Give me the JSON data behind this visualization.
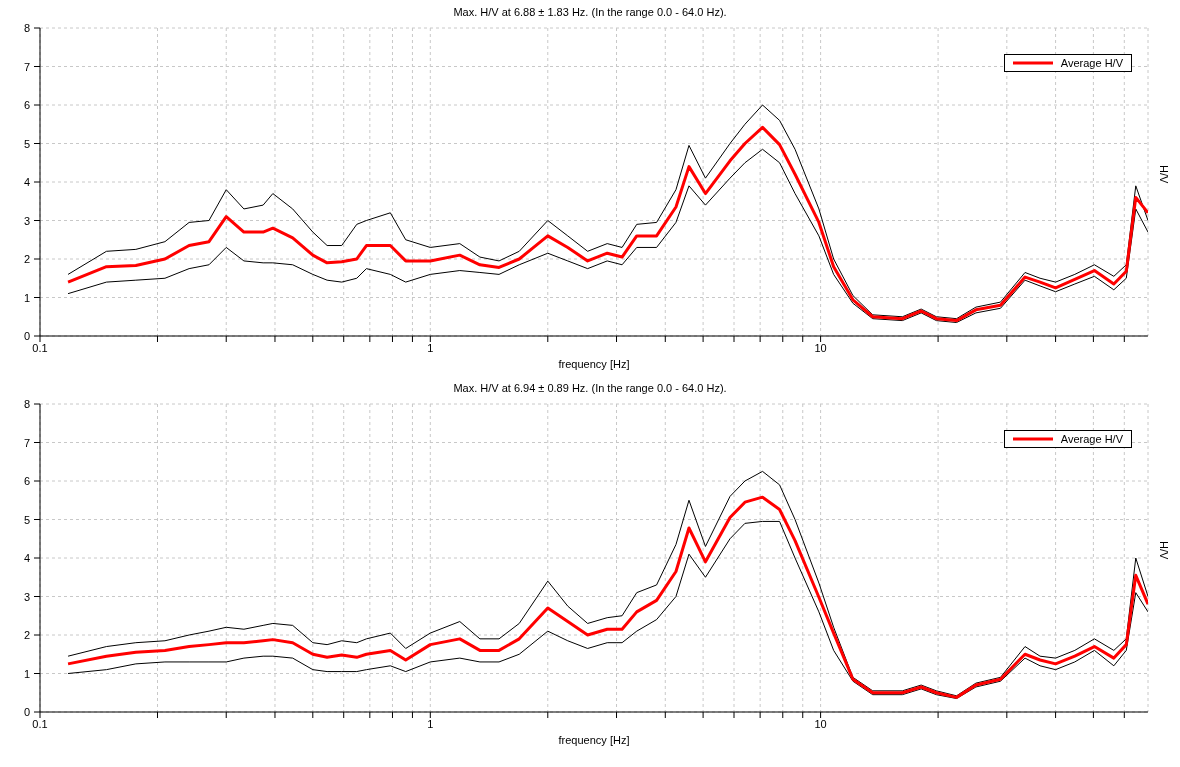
{
  "chart_data": [
    {
      "type": "line",
      "title": "Max. H/V at 6.88 ± 1.83 Hz. (In the range 0.0 - 64.0 Hz).",
      "xlabel": "frequency [Hz]",
      "ylabel": "H/V",
      "log": "x",
      "grid": true,
      "legend": "top right",
      "marker": "none",
      "line_style": "solid",
      "x": [
        0.118,
        0.148,
        0.176,
        0.209,
        0.241,
        0.271,
        0.3,
        0.333,
        0.373,
        0.395,
        0.444,
        0.5,
        0.544,
        0.593,
        0.648,
        0.686,
        0.79,
        0.865,
        1.0,
        1.19,
        1.34,
        1.5,
        1.69,
        2.0,
        2.25,
        2.53,
        2.84,
        3.1,
        3.38,
        3.8,
        4.26,
        4.6,
        5.07,
        5.86,
        6.4,
        7.1,
        7.85,
        8.6,
        9.9,
        10.8,
        12.1,
        13.6,
        16.2,
        18.1,
        19.8,
        22.3,
        25,
        28.9,
        33.4,
        36.5,
        40,
        44.8,
        50.3,
        56.4,
        60.7,
        64.2,
        69
      ],
      "xlim": [
        0.1,
        69
      ],
      "ylim": [
        0,
        8
      ],
      "yticks": [
        0,
        1,
        2,
        3,
        4,
        5,
        6,
        7,
        8
      ],
      "xticks": [
        0.1,
        {
          "value": 0.2,
          "label": null
        },
        {
          "value": 0.3,
          "label": null
        },
        {
          "value": 0.4,
          "label": null
        },
        {
          "value": 0.5,
          "label": null
        },
        {
          "value": 0.6,
          "label": null
        },
        {
          "value": 0.7,
          "label": null
        },
        {
          "value": 0.8,
          "label": null
        },
        {
          "value": 0.9,
          "label": null
        },
        1,
        {
          "value": 2,
          "label": null
        },
        {
          "value": 3,
          "label": null
        },
        {
          "value": 4,
          "label": null
        },
        {
          "value": 5,
          "label": null
        },
        {
          "value": 6,
          "label": null
        },
        {
          "value": 7,
          "label": null
        },
        {
          "value": 8,
          "label": null
        },
        {
          "value": 9,
          "label": null
        },
        10,
        {
          "value": 20,
          "label": null
        },
        {
          "value": 30,
          "label": null
        },
        {
          "value": 40,
          "label": null
        },
        {
          "value": 50,
          "label": null
        },
        {
          "value": 60,
          "label": null
        }
      ],
      "series": [
        {
          "color": "#000000",
          "values": [
            1.6,
            2.2,
            2.25,
            2.45,
            2.95,
            3.0,
            3.8,
            3.3,
            3.4,
            3.7,
            3.3,
            2.7,
            2.35,
            2.35,
            2.9,
            3.0,
            3.2,
            2.5,
            2.3,
            2.4,
            2.05,
            1.95,
            2.2,
            3.0,
            2.6,
            2.2,
            2.4,
            2.3,
            2.9,
            2.95,
            3.8,
            4.95,
            4.1,
            5.0,
            5.5,
            6.0,
            5.6,
            4.85,
            3.3,
            2.0,
            1.05,
            0.55,
            0.5,
            0.7,
            0.5,
            0.45,
            0.75,
            0.88,
            1.65,
            1.5,
            1.4,
            1.6,
            1.85,
            1.55,
            1.85,
            3.9,
            3.0
          ]
        },
        {
          "color": "#000000",
          "values": [
            1.1,
            1.4,
            1.45,
            1.5,
            1.75,
            1.85,
            2.3,
            1.95,
            1.9,
            1.9,
            1.85,
            1.6,
            1.45,
            1.4,
            1.5,
            1.75,
            1.6,
            1.4,
            1.6,
            1.7,
            1.65,
            1.6,
            1.85,
            2.15,
            1.95,
            1.75,
            1.95,
            1.85,
            2.3,
            2.3,
            2.95,
            3.9,
            3.4,
            4.1,
            4.5,
            4.85,
            4.5,
            3.7,
            2.6,
            1.6,
            0.85,
            0.45,
            0.4,
            0.6,
            0.4,
            0.35,
            0.6,
            0.72,
            1.45,
            1.3,
            1.15,
            1.35,
            1.55,
            1.2,
            1.5,
            3.3,
            2.7
          ]
        },
        {
          "name": "Average H/V",
          "color": "#ff0000",
          "values": [
            1.4,
            1.8,
            1.83,
            2.0,
            2.35,
            2.45,
            3.1,
            2.7,
            2.7,
            2.8,
            2.55,
            2.1,
            1.9,
            1.93,
            2.0,
            2.35,
            2.35,
            1.95,
            1.95,
            2.1,
            1.85,
            1.78,
            2.0,
            2.6,
            2.3,
            1.95,
            2.15,
            2.05,
            2.6,
            2.6,
            3.35,
            4.4,
            3.7,
            4.55,
            5.0,
            5.42,
            4.97,
            4.2,
            2.95,
            1.8,
            0.94,
            0.5,
            0.45,
            0.65,
            0.45,
            0.4,
            0.68,
            0.8,
            1.53,
            1.4,
            1.25,
            1.47,
            1.7,
            1.35,
            1.68,
            3.6,
            3.2
          ]
        }
      ]
    },
    {
      "type": "line",
      "title": "Max. H/V at 6.94 ± 0.89 Hz. (In the range 0.0 - 64.0 Hz).",
      "xlabel": "frequency [Hz]",
      "ylabel": "H/V",
      "log": "x",
      "grid": true,
      "legend": "top right",
      "marker": "none",
      "line_style": "solid",
      "x": [
        0.118,
        0.148,
        0.176,
        0.209,
        0.241,
        0.271,
        0.3,
        0.333,
        0.373,
        0.395,
        0.444,
        0.5,
        0.544,
        0.593,
        0.648,
        0.686,
        0.79,
        0.865,
        1.0,
        1.19,
        1.34,
        1.5,
        1.69,
        2.0,
        2.25,
        2.53,
        2.84,
        3.1,
        3.38,
        3.8,
        4.26,
        4.6,
        5.07,
        5.86,
        6.4,
        7.1,
        7.85,
        8.6,
        9.9,
        10.8,
        12.1,
        13.6,
        16.2,
        18.1,
        19.8,
        22.3,
        25,
        28.9,
        33.4,
        36.5,
        40,
        44.8,
        50.3,
        56.4,
        60.7,
        64.2,
        69
      ],
      "xlim": [
        0.1,
        69
      ],
      "ylim": [
        0,
        8
      ],
      "yticks": [
        0,
        1,
        2,
        3,
        4,
        5,
        6,
        7,
        8
      ],
      "xticks": [
        0.1,
        {
          "value": 0.2,
          "label": null
        },
        {
          "value": 0.3,
          "label": null
        },
        {
          "value": 0.4,
          "label": null
        },
        {
          "value": 0.5,
          "label": null
        },
        {
          "value": 0.6,
          "label": null
        },
        {
          "value": 0.7,
          "label": null
        },
        {
          "value": 0.8,
          "label": null
        },
        {
          "value": 0.9,
          "label": null
        },
        1,
        {
          "value": 2,
          "label": null
        },
        {
          "value": 3,
          "label": null
        },
        {
          "value": 4,
          "label": null
        },
        {
          "value": 5,
          "label": null
        },
        {
          "value": 6,
          "label": null
        },
        {
          "value": 7,
          "label": null
        },
        {
          "value": 8,
          "label": null
        },
        {
          "value": 9,
          "label": null
        },
        10,
        {
          "value": 20,
          "label": null
        },
        {
          "value": 30,
          "label": null
        },
        {
          "value": 40,
          "label": null
        },
        {
          "value": 50,
          "label": null
        },
        {
          "value": 60,
          "label": null
        }
      ],
      "series": [
        {
          "color": "#000000",
          "values": [
            1.45,
            1.7,
            1.8,
            1.85,
            2.0,
            2.1,
            2.2,
            2.15,
            2.25,
            2.3,
            2.25,
            1.8,
            1.75,
            1.85,
            1.8,
            1.9,
            2.05,
            1.65,
            2.05,
            2.35,
            1.9,
            1.9,
            2.3,
            3.4,
            2.75,
            2.3,
            2.45,
            2.5,
            3.1,
            3.3,
            4.35,
            5.5,
            4.3,
            5.6,
            6.0,
            6.25,
            5.9,
            5.0,
            3.35,
            2.2,
            0.9,
            0.55,
            0.55,
            0.7,
            0.55,
            0.42,
            0.75,
            0.9,
            1.7,
            1.45,
            1.4,
            1.6,
            1.9,
            1.6,
            1.9,
            4.0,
            3.0
          ]
        },
        {
          "color": "#000000",
          "values": [
            1.0,
            1.1,
            1.25,
            1.3,
            1.3,
            1.3,
            1.3,
            1.4,
            1.45,
            1.45,
            1.4,
            1.1,
            1.05,
            1.05,
            1.05,
            1.1,
            1.2,
            1.05,
            1.3,
            1.4,
            1.3,
            1.3,
            1.5,
            2.1,
            1.85,
            1.65,
            1.8,
            1.8,
            2.1,
            2.4,
            3.0,
            4.1,
            3.5,
            4.5,
            4.9,
            4.95,
            4.95,
            4.0,
            2.6,
            1.6,
            0.8,
            0.45,
            0.45,
            0.6,
            0.45,
            0.35,
            0.65,
            0.8,
            1.4,
            1.2,
            1.1,
            1.3,
            1.6,
            1.2,
            1.6,
            3.1,
            2.6
          ]
        },
        {
          "name": "Average H/V",
          "color": "#ff0000",
          "values": [
            1.25,
            1.45,
            1.55,
            1.6,
            1.7,
            1.75,
            1.8,
            1.8,
            1.85,
            1.88,
            1.8,
            1.5,
            1.42,
            1.48,
            1.42,
            1.5,
            1.6,
            1.35,
            1.75,
            1.9,
            1.6,
            1.6,
            1.9,
            2.7,
            2.35,
            2.0,
            2.15,
            2.15,
            2.6,
            2.9,
            3.65,
            4.78,
            3.9,
            5.05,
            5.45,
            5.58,
            5.26,
            4.45,
            2.98,
            2.05,
            0.85,
            0.5,
            0.5,
            0.65,
            0.5,
            0.38,
            0.7,
            0.85,
            1.5,
            1.35,
            1.25,
            1.45,
            1.7,
            1.4,
            1.75,
            3.55,
            2.8
          ]
        }
      ]
    }
  ]
}
